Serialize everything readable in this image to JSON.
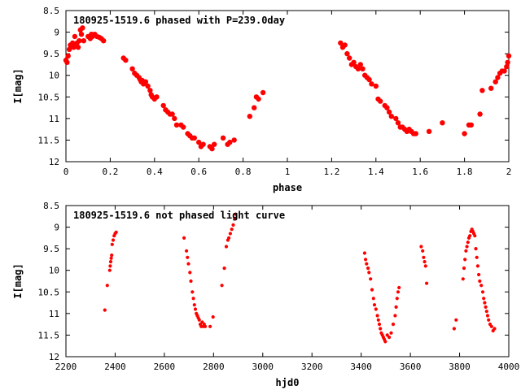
{
  "chart_data": [
    {
      "type": "scatter",
      "title": "180925-1519.6 phased with P=239.0day",
      "xlabel": "phase",
      "ylabel": "I[mag]",
      "xlim": [
        0,
        2
      ],
      "ylim": [
        8.5,
        12
      ],
      "y_reversed": true,
      "x_ticks": [
        "0",
        "0.2",
        "0.4",
        "0.6",
        "0.8",
        "1",
        "1.2",
        "1.4",
        "1.6",
        "1.8",
        "2"
      ],
      "y_ticks": [
        "8.5",
        "9",
        "9.5",
        "10",
        "10.5",
        "11",
        "11.5",
        "12"
      ],
      "marker_color": "#ff0000",
      "grid": false,
      "series": [
        {
          "x": [
            0.0,
            0.005,
            0.01,
            0.015,
            0.02,
            0.03,
            0.035,
            0.04,
            0.045,
            0.05,
            0.055,
            0.06,
            0.065,
            0.07,
            0.075,
            0.08,
            0.1,
            0.11,
            0.115,
            0.12,
            0.13,
            0.14,
            0.15,
            0.16,
            0.17,
            0.26,
            0.27,
            0.3,
            0.31,
            0.32,
            0.33,
            0.335,
            0.34,
            0.345,
            0.35,
            0.36,
            0.37,
            0.38,
            0.385,
            0.39,
            0.4,
            0.41,
            0.44,
            0.45,
            0.46,
            0.47,
            0.48,
            0.49,
            0.5,
            0.52,
            0.53,
            0.55,
            0.56,
            0.57,
            0.58,
            0.6,
            0.61,
            0.62,
            0.65,
            0.66,
            0.67,
            0.71,
            0.73,
            0.74,
            0.76,
            0.83,
            0.85,
            0.86,
            0.87,
            0.89,
            1.24,
            1.25,
            1.26,
            1.27,
            1.28,
            1.29,
            1.3,
            1.31,
            1.32,
            1.33,
            1.34,
            1.35,
            1.36,
            1.37,
            1.38,
            1.4,
            1.41,
            1.42,
            1.44,
            1.45,
            1.46,
            1.47,
            1.49,
            1.5,
            1.51,
            1.52,
            1.53,
            1.54,
            1.55,
            1.56,
            1.57,
            1.58,
            1.64,
            1.7,
            1.8,
            1.82,
            1.83,
            1.87,
            1.88,
            1.92,
            1.94,
            1.95,
            1.96,
            1.97,
            1.98,
            1.99,
            1.995,
            2.0
          ],
          "y": [
            9.65,
            9.7,
            9.55,
            9.4,
            9.3,
            9.25,
            9.35,
            9.1,
            9.3,
            9.25,
            9.35,
            9.2,
            8.95,
            9.05,
            8.9,
            9.2,
            9.1,
            9.15,
            9.05,
            9.1,
            9.05,
            9.1,
            9.12,
            9.15,
            9.2,
            9.6,
            9.65,
            9.85,
            9.95,
            10.0,
            10.05,
            10.1,
            10.15,
            10.12,
            10.2,
            10.15,
            10.25,
            10.35,
            10.45,
            10.5,
            10.55,
            10.5,
            10.7,
            10.8,
            10.85,
            10.9,
            10.9,
            11.0,
            11.15,
            11.15,
            11.2,
            11.35,
            11.4,
            11.45,
            11.45,
            11.55,
            11.65,
            11.6,
            11.65,
            11.7,
            11.6,
            11.45,
            11.6,
            11.55,
            11.5,
            10.95,
            10.75,
            10.5,
            10.55,
            10.4,
            9.25,
            9.35,
            9.3,
            9.5,
            9.6,
            9.75,
            9.7,
            9.8,
            9.85,
            9.75,
            9.85,
            10.0,
            10.05,
            10.1,
            10.2,
            10.25,
            10.55,
            10.6,
            10.7,
            10.75,
            10.85,
            10.95,
            11.0,
            11.1,
            11.2,
            11.2,
            11.25,
            11.3,
            11.25,
            11.3,
            11.35,
            11.35,
            11.3,
            11.1,
            11.35,
            11.15,
            11.15,
            10.9,
            10.35,
            10.3,
            10.15,
            10.05,
            9.95,
            9.9,
            9.9,
            9.8,
            9.7,
            9.55
          ],
          "name": ""
        }
      ]
    },
    {
      "type": "scatter",
      "title": "180925-1519.6 not phased light curve",
      "xlabel": "hjd0",
      "ylabel": "I[mag]",
      "xlim": [
        2200,
        4000
      ],
      "ylim": [
        8.5,
        12
      ],
      "y_reversed": true,
      "x_ticks": [
        "2200",
        "2400",
        "2600",
        "2800",
        "3000",
        "3200",
        "3400",
        "3600",
        "3800",
        "4000"
      ],
      "y_ticks": [
        "8.5",
        "9",
        "9.5",
        "10",
        "10.5",
        "11",
        "11.5",
        "12"
      ],
      "marker_color": "#ff0000",
      "grid": false,
      "series": [
        {
          "x": [
            2358,
            2368,
            2378,
            2380,
            2382,
            2384,
            2386,
            2388,
            2392,
            2396,
            2400,
            2404,
            2680,
            2690,
            2694,
            2698,
            2704,
            2708,
            2714,
            2718,
            2722,
            2726,
            2730,
            2734,
            2738,
            2742,
            2746,
            2750,
            2754,
            2758,
            2762,
            2766,
            2786,
            2798,
            2834,
            2844,
            2852,
            2858,
            2862,
            2868,
            2874,
            2880,
            2886,
            2890,
            3414,
            3418,
            3422,
            3428,
            3432,
            3438,
            3444,
            3450,
            3454,
            3460,
            3466,
            3470,
            3474,
            3478,
            3482,
            3486,
            3490,
            3494,
            3498,
            3506,
            3514,
            3522,
            3530,
            3538,
            3542,
            3546,
            3550,
            3554,
            3644,
            3650,
            3654,
            3658,
            3662,
            3666,
            3778,
            3786,
            3814,
            3818,
            3822,
            3826,
            3830,
            3834,
            3838,
            3842,
            3846,
            3850,
            3854,
            3858,
            3862,
            3866,
            3870,
            3874,
            3878,
            3882,
            3888,
            3894,
            3898,
            3902,
            3906,
            3910,
            3914,
            3918,
            3924,
            3930,
            3936,
            3942
          ],
          "y": [
            10.92,
            10.35,
            10.0,
            9.9,
            9.8,
            9.72,
            9.65,
            9.4,
            9.3,
            9.2,
            9.15,
            9.12,
            9.25,
            9.55,
            9.7,
            9.85,
            10.05,
            10.25,
            10.5,
            10.65,
            10.8,
            10.9,
            11.0,
            11.05,
            11.1,
            11.15,
            11.25,
            11.3,
            11.2,
            11.3,
            11.25,
            11.3,
            11.3,
            11.08,
            10.35,
            9.95,
            9.45,
            9.3,
            9.25,
            9.15,
            9.05,
            8.95,
            8.8,
            8.7,
            9.6,
            9.75,
            9.85,
            9.95,
            10.05,
            10.2,
            10.45,
            10.65,
            10.8,
            10.9,
            11.05,
            11.15,
            11.25,
            11.35,
            11.45,
            11.5,
            11.55,
            11.6,
            11.65,
            11.5,
            11.55,
            11.45,
            11.25,
            11.05,
            10.85,
            10.65,
            10.5,
            10.4,
            9.45,
            9.55,
            9.7,
            9.8,
            9.9,
            10.3,
            11.35,
            11.15,
            10.2,
            9.95,
            9.75,
            9.55,
            9.45,
            9.35,
            9.25,
            9.2,
            9.1,
            9.05,
            9.1,
            9.15,
            9.2,
            9.5,
            9.7,
            9.9,
            10.1,
            10.25,
            10.35,
            10.5,
            10.65,
            10.75,
            10.85,
            10.95,
            11.05,
            11.15,
            11.25,
            11.3,
            11.4,
            11.35
          ],
          "name": ""
        }
      ]
    }
  ]
}
